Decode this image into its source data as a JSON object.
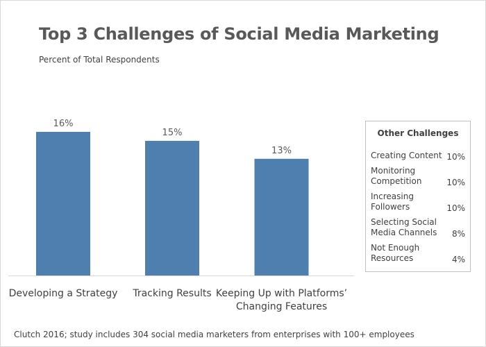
{
  "chart_data": {
    "type": "bar",
    "title": "Top 3 Challenges of Social Media Marketing",
    "subtitle": "Percent of Total Respondents",
    "categories": [
      "Developing a Strategy",
      "Tracking Results",
      "Keeping Up with Platforms’ Changing Features"
    ],
    "values": [
      16,
      15,
      13
    ],
    "data_labels": [
      "16%",
      "15%",
      "13%"
    ],
    "xlabel": "",
    "ylabel": "",
    "ylim": [
      0,
      16
    ],
    "grid": false,
    "bar_color": "#4e7fae",
    "legend_box": {
      "title": "Other Challenges",
      "placement": "right",
      "items": [
        {
          "name": "Creating Content",
          "value": "10%"
        },
        {
          "name": "Monitoring Competition",
          "value": "10%"
        },
        {
          "name": "Increasing Followers",
          "value": "10%"
        },
        {
          "name": "Selecting Social Media Channels",
          "value": "8%"
        },
        {
          "name": "Not Enough Resources",
          "value": "4%"
        }
      ]
    },
    "footnote": "Clutch 2016; study includes 304 social media marketers from enterprises with 100+ employees"
  }
}
